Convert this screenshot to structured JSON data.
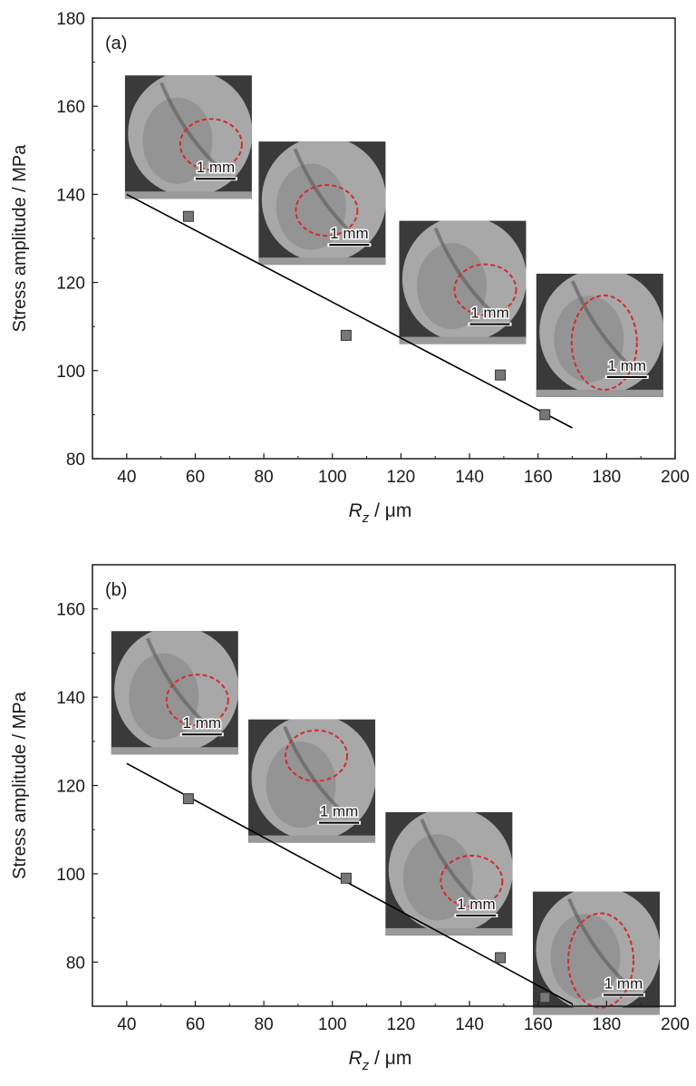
{
  "chart_data": [
    {
      "panel_label": "(a)",
      "type": "scatter",
      "xlabel_main": "R",
      "xlabel_sub": "z",
      "xlabel_unit": " / μm",
      "ylabel": "Stress amplitude / MPa",
      "xlim": [
        30,
        200
      ],
      "ylim": [
        80,
        180
      ],
      "xticks": [
        40,
        60,
        80,
        100,
        120,
        140,
        160,
        180,
        200
      ],
      "yticks": [
        80,
        100,
        120,
        140,
        160,
        180
      ],
      "points": [
        {
          "x": 58,
          "y": 135
        },
        {
          "x": 104,
          "y": 108
        },
        {
          "x": 149,
          "y": 99
        },
        {
          "x": 162,
          "y": 90
        }
      ],
      "fit_line": {
        "x": [
          40,
          170
        ],
        "y": [
          140,
          87
        ]
      },
      "insets": [
        {
          "scale_bar": "1 mm",
          "center_x": 58,
          "center_y": 153
        },
        {
          "scale_bar": "1 mm",
          "center_x": 97,
          "center_y": 138
        },
        {
          "scale_bar": "1 mm",
          "center_x": 138,
          "center_y": 120
        },
        {
          "scale_bar": "1 mm",
          "center_x": 178,
          "center_y": 108
        }
      ],
      "grid": false,
      "legend": "none"
    },
    {
      "panel_label": "(b)",
      "type": "scatter",
      "xlabel_main": "R",
      "xlabel_sub": "z",
      "xlabel_unit": " / μm",
      "ylabel": "Stress amplitude / MPa",
      "xlim": [
        30,
        200
      ],
      "ylim": [
        70,
        170
      ],
      "xticks": [
        40,
        60,
        80,
        100,
        120,
        140,
        160,
        180,
        200
      ],
      "yticks": [
        80,
        100,
        120,
        140,
        160
      ],
      "points": [
        {
          "x": 58,
          "y": 117
        },
        {
          "x": 104,
          "y": 99
        },
        {
          "x": 149,
          "y": 81
        },
        {
          "x": 162,
          "y": 72
        }
      ],
      "fit_line": {
        "x": [
          40,
          170
        ],
        "y": [
          125,
          70.5
        ]
      },
      "insets": [
        {
          "scale_bar": "1 mm",
          "center_x": 54,
          "center_y": 141
        },
        {
          "scale_bar": "1 mm",
          "center_x": 94,
          "center_y": 121
        },
        {
          "scale_bar": "1 mm",
          "center_x": 134,
          "center_y": 100
        },
        {
          "scale_bar": "1 mm",
          "center_x": 177,
          "center_y": 82
        }
      ],
      "grid": false,
      "legend": "none"
    }
  ],
  "colors": {
    "axis": "#1a1a1a",
    "marker_fill": "#777777",
    "marker_stroke": "#333333",
    "fit_line": "#000000",
    "inset_dark": "#3a3a3a",
    "inset_light": "#a8a8a8",
    "outline_ellipse": "#d62a2a"
  }
}
